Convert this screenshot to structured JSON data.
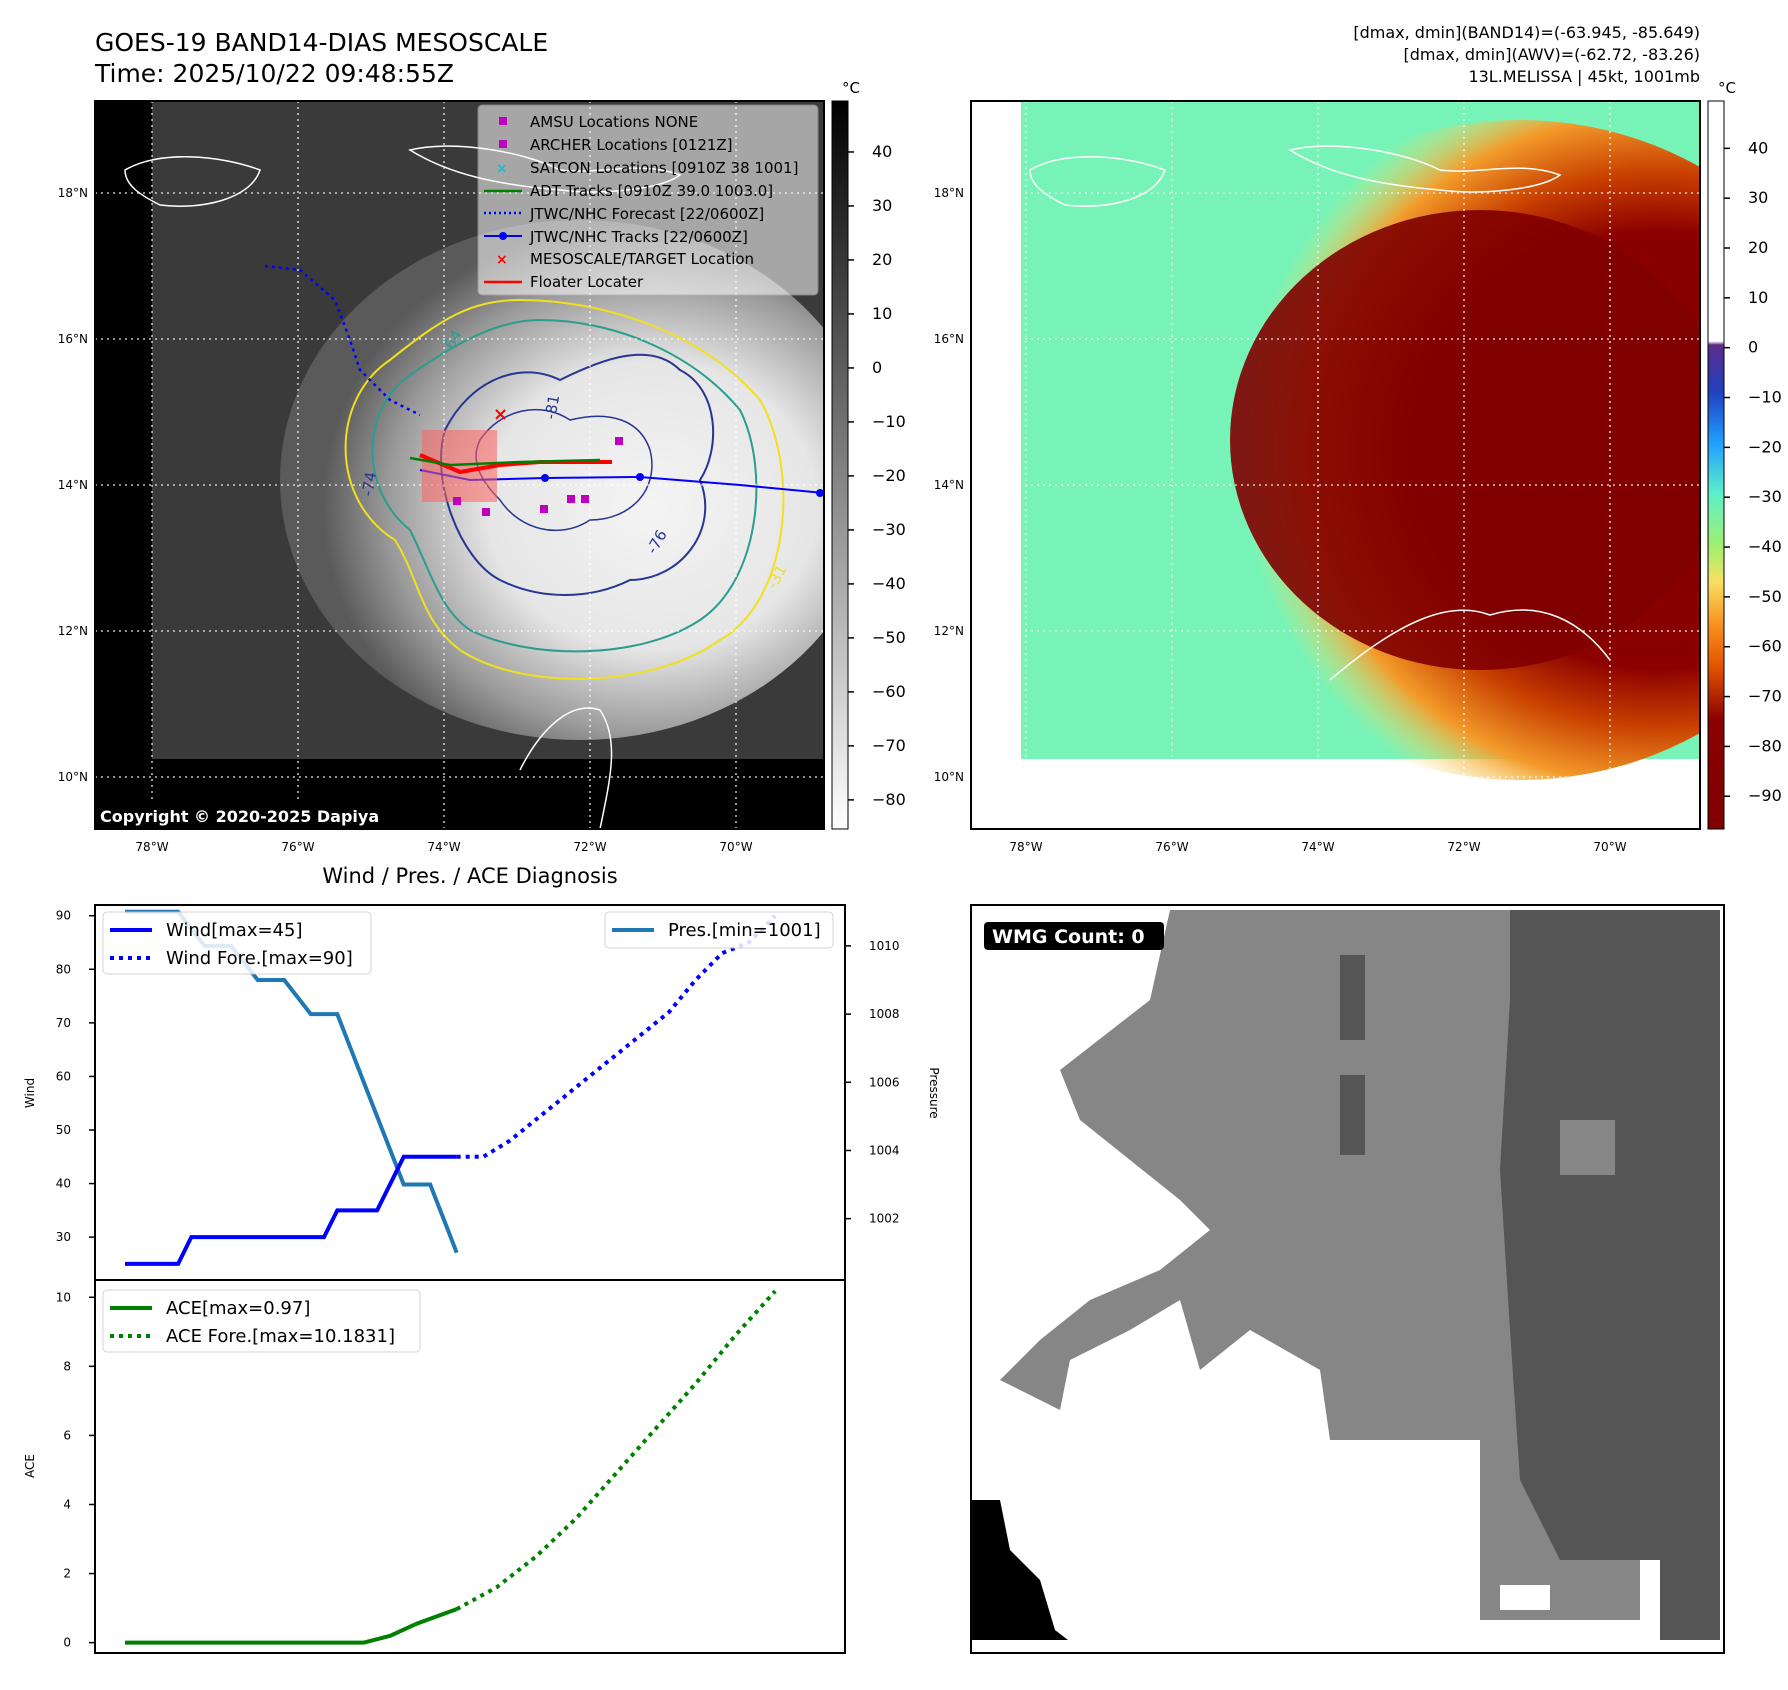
{
  "title": {
    "line1": "GOES-19 BAND14-DIAS MESOSCALE",
    "line2": "Time: 2025/10/22 09:48:55Z"
  },
  "info": {
    "band14": "[dmax, dmin](BAND14)=(-63.945, -85.649)",
    "awv": "[dmax, dmin](AWV)=(-62.72, -83.26)",
    "storm": "13L.MELISSA | 45kt, 1001mb"
  },
  "copyright": "Copyright © 2020-2025 Dapiya",
  "map_axes": {
    "lon_labels": [
      "78°W",
      "76°W",
      "74°W",
      "72°W",
      "70°W"
    ],
    "lat_labels": [
      "18°N",
      "16°N",
      "14°N",
      "12°N",
      "10°N"
    ]
  },
  "legend": [
    {
      "label": "AMSU Locations NONE",
      "marker": "square",
      "color": "#c000c0"
    },
    {
      "label": "ARCHER Locations [0121Z]",
      "marker": "square",
      "color": "#c000c0"
    },
    {
      "label": "SATCON Locations [0910Z 38 1001]",
      "marker": "x",
      "color": "#17becf"
    },
    {
      "label": "ADT Tracks [0910Z 39.0 1003.0]",
      "marker": "line",
      "color": "#008000"
    },
    {
      "label": "JTWC/NHC Forecast [22/0600Z]",
      "marker": "dotted",
      "color": "#0000ff"
    },
    {
      "label": "JTWC/NHC Tracks [22/0600Z]",
      "marker": "line-dot",
      "color": "#0000ff"
    },
    {
      "label": "MESOSCALE/TARGET Location",
      "marker": "x",
      "color": "#ff0000"
    },
    {
      "label": "Floater Locater",
      "marker": "line",
      "color": "#ff0000"
    }
  ],
  "contour_labels": [
    "-64",
    "-81",
    "-76",
    "-74",
    "-31"
  ],
  "colorbar_gray": {
    "unit": "°C",
    "ticks": [
      "40",
      "30",
      "20",
      "10",
      "0",
      "−10",
      "−20",
      "−30",
      "−40",
      "−50",
      "−60",
      "−70",
      "−80"
    ]
  },
  "colorbar_color": {
    "unit": "°C",
    "ticks": [
      "40",
      "30",
      "20",
      "10",
      "0",
      "−10",
      "−20",
      "−30",
      "−40",
      "−50",
      "−60",
      "−70",
      "−80",
      "−90"
    ]
  },
  "diag_title": "Wind / Pres. / ACE Diagnosis",
  "wmg_label": "WMG Count: 0",
  "colors": {
    "wind": "#0000ff",
    "pres": "#1f77b4",
    "ace": "#008000",
    "legend_magenta": "#c000c0"
  },
  "chart_data": [
    {
      "type": "line",
      "title": "",
      "ylabel": "Wind",
      "ylim": [
        22,
        92
      ],
      "yticks": [
        30,
        40,
        50,
        60,
        70,
        80,
        90
      ],
      "x": [
        0,
        1,
        2,
        3,
        4,
        5,
        6,
        7,
        8,
        9,
        10,
        11,
        12,
        13,
        14,
        15,
        16,
        17,
        18,
        19,
        20,
        21,
        22,
        23,
        24,
        25
      ],
      "series": [
        {
          "name": "Wind[max=45]",
          "style": "solid",
          "values": [
            25,
            25,
            25,
            25,
            25,
            30,
            30,
            30,
            30,
            30,
            30,
            30,
            30,
            30,
            30,
            30,
            35,
            35,
            35,
            35,
            40,
            45,
            45,
            45,
            45,
            45
          ]
        },
        {
          "name": "Wind Fore.[max=90]",
          "style": "dotted",
          "x": [
            25,
            27,
            29,
            31,
            33,
            35,
            37,
            39,
            41,
            43,
            45,
            47,
            49
          ],
          "values": [
            45,
            45,
            48,
            52,
            56,
            60,
            64,
            68,
            72,
            78,
            83,
            85,
            90
          ]
        }
      ],
      "legend": [
        "Wind[max=45]",
        "Wind Fore.[max=90]"
      ]
    },
    {
      "type": "line",
      "ylabel": "Pressure",
      "ylim": [
        1000.2,
        1011.2
      ],
      "yticks": [
        1002,
        1004,
        1006,
        1008,
        1010
      ],
      "series": [
        {
          "name": "Pres.[min=1001]",
          "style": "solid",
          "x": [
            0,
            2,
            4,
            6,
            8,
            10,
            12,
            14,
            16,
            18,
            19,
            20,
            21,
            22,
            23,
            24,
            25
          ],
          "values": [
            1011,
            1011,
            1011,
            1010,
            1010,
            1009,
            1009,
            1008,
            1008,
            1006,
            1005,
            1004,
            1003,
            1003,
            1003,
            1002,
            1001
          ]
        }
      ],
      "legend": [
        "Pres.[min=1001]"
      ]
    },
    {
      "type": "line",
      "ylabel": "ACE",
      "ylim": [
        -0.3,
        10.5
      ],
      "yticks": [
        0,
        2,
        4,
        6,
        8,
        10
      ],
      "series": [
        {
          "name": "ACE[max=0.97]",
          "style": "solid",
          "x": [
            0,
            5,
            10,
            15,
            18,
            20,
            22,
            25
          ],
          "values": [
            0,
            0,
            0,
            0,
            0,
            0.2,
            0.55,
            0.97
          ]
        },
        {
          "name": "ACE Fore.[max=10.1831]",
          "style": "dotted",
          "x": [
            25,
            28,
            31,
            34,
            37,
            40,
            43,
            46,
            49
          ],
          "values": [
            0.97,
            1.6,
            2.5,
            3.6,
            4.9,
            6.2,
            7.5,
            8.9,
            10.18
          ]
        }
      ],
      "legend": [
        "ACE[max=0.97]",
        "ACE Fore.[max=10.1831]"
      ]
    }
  ]
}
